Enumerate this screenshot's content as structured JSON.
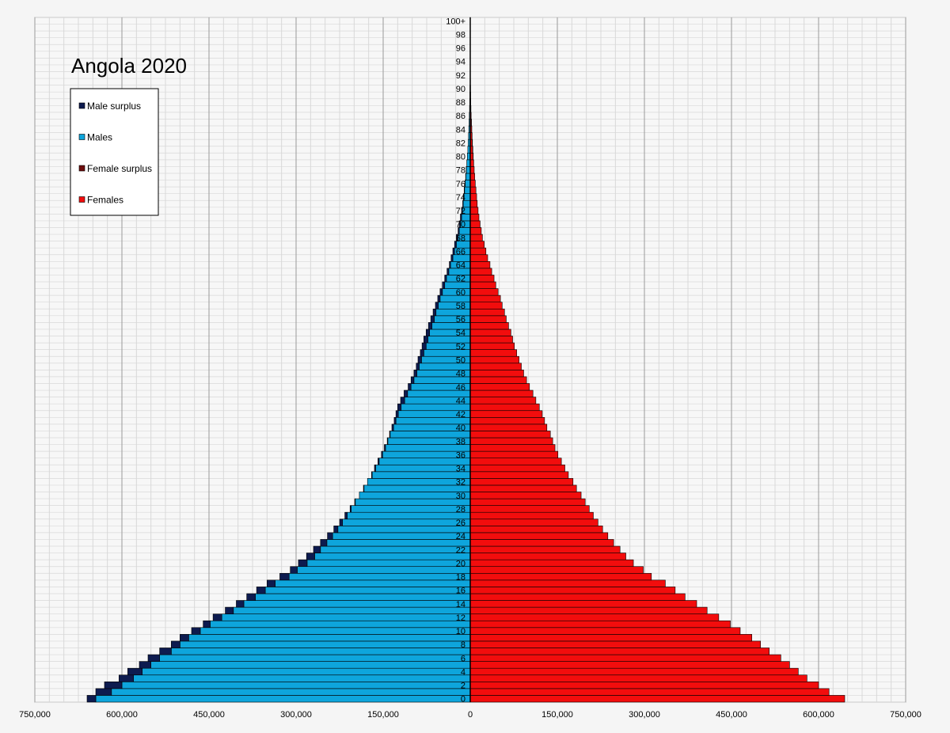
{
  "chart_data": {
    "type": "bar",
    "orientation": "horizontal",
    "title": "Angola 2020",
    "legend_position": "top-left",
    "grid": true,
    "xlim": [
      -750000,
      750000
    ],
    "x_tick_values": [
      -750000,
      -600000,
      -450000,
      -300000,
      -150000,
      0,
      150000,
      300000,
      450000,
      600000,
      750000
    ],
    "x_tick_labels": [
      "750,000",
      "600,000",
      "450,000",
      "300,000",
      "150,000",
      "0",
      "150,000",
      "300,000",
      "450,000",
      "600,000",
      "750,000"
    ],
    "y_tick_labels": [
      "0",
      "2",
      "4",
      "6",
      "8",
      "10",
      "12",
      "14",
      "16",
      "18",
      "20",
      "22",
      "24",
      "26",
      "28",
      "30",
      "32",
      "34",
      "36",
      "38",
      "40",
      "42",
      "44",
      "46",
      "48",
      "50",
      "52",
      "54",
      "56",
      "58",
      "60",
      "62",
      "64",
      "66",
      "68",
      "70",
      "72",
      "74",
      "76",
      "78",
      "80",
      "82",
      "84",
      "86",
      "88",
      "90",
      "92",
      "94",
      "96",
      "98",
      "100+"
    ],
    "categories": [
      "0",
      "1",
      "2",
      "3",
      "4",
      "5",
      "6",
      "7",
      "8",
      "9",
      "10",
      "11",
      "12",
      "13",
      "14",
      "15",
      "16",
      "17",
      "18",
      "19",
      "20",
      "21",
      "22",
      "23",
      "24",
      "25",
      "26",
      "27",
      "28",
      "29",
      "30",
      "31",
      "32",
      "33",
      "34",
      "35",
      "36",
      "37",
      "38",
      "39",
      "40",
      "41",
      "42",
      "43",
      "44",
      "45",
      "46",
      "47",
      "48",
      "49",
      "50",
      "51",
      "52",
      "53",
      "54",
      "55",
      "56",
      "57",
      "58",
      "59",
      "60",
      "61",
      "62",
      "63",
      "64",
      "65",
      "66",
      "67",
      "68",
      "69",
      "70",
      "71",
      "72",
      "73",
      "74",
      "75",
      "76",
      "77",
      "78",
      "79",
      "80",
      "81",
      "82",
      "83",
      "84",
      "85",
      "86",
      "87",
      "88",
      "89",
      "90",
      "91",
      "92",
      "93",
      "94",
      "95",
      "96",
      "97",
      "98",
      "99",
      "100+"
    ],
    "series": [
      {
        "name": "Male surplus",
        "color": "#0d1b4f"
      },
      {
        "name": "Males",
        "color": "#0ea5dc"
      },
      {
        "name": "Female surplus",
        "color": "#6e0d0d"
      },
      {
        "name": "Females",
        "color": "#f20d0d"
      }
    ],
    "males": [
      660000,
      645000,
      630000,
      605000,
      590000,
      570000,
      555000,
      535000,
      515000,
      500000,
      480000,
      460000,
      443000,
      422000,
      403000,
      385000,
      368000,
      350000,
      328000,
      310000,
      296000,
      282000,
      270000,
      258000,
      246000,
      235000,
      225000,
      216000,
      207000,
      199000,
      191000,
      184000,
      177000,
      170000,
      165000,
      159000,
      153000,
      148000,
      143000,
      139000,
      135000,
      131000,
      128000,
      125000,
      120000,
      114000,
      107000,
      102000,
      97000,
      93000,
      90000,
      86000,
      83000,
      80000,
      76000,
      72000,
      68000,
      64000,
      60000,
      56000,
      52000,
      48000,
      44000,
      40000,
      36000,
      33000,
      30000,
      27000,
      24000,
      21000,
      19000,
      17000,
      15000,
      13000,
      12000,
      10500,
      9000,
      8000,
      7000,
      6000,
      5000,
      4200,
      3500,
      3000,
      2500,
      2000,
      1600,
      1200,
      900,
      700,
      500,
      300,
      200,
      120,
      80,
      50,
      30,
      15,
      8,
      4,
      3
    ],
    "females": [
      645000,
      618000,
      600000,
      580000,
      565000,
      550000,
      535000,
      515000,
      500000,
      485000,
      465000,
      448000,
      428000,
      408000,
      390000,
      370000,
      353000,
      336000,
      312000,
      298000,
      281000,
      268000,
      258000,
      247000,
      237000,
      228000,
      220000,
      212000,
      205000,
      198000,
      191000,
      183000,
      177000,
      169000,
      163000,
      157000,
      151000,
      146000,
      142000,
      138000,
      132000,
      128000,
      124000,
      119000,
      113000,
      108000,
      102000,
      97000,
      92000,
      88000,
      84000,
      80000,
      76000,
      73000,
      70000,
      66000,
      62000,
      59000,
      55000,
      52000,
      48000,
      44000,
      41000,
      37000,
      34000,
      30000,
      27000,
      24000,
      21000,
      19000,
      17000,
      15000,
      13500,
      12000,
      11000,
      9800,
      8700,
      7700,
      6800,
      6000,
      5200,
      4500,
      3800,
      3200,
      2600,
      2100,
      1600,
      1200,
      900,
      700,
      500,
      300,
      200,
      120,
      80,
      50,
      30,
      15,
      8,
      4,
      3
    ]
  }
}
